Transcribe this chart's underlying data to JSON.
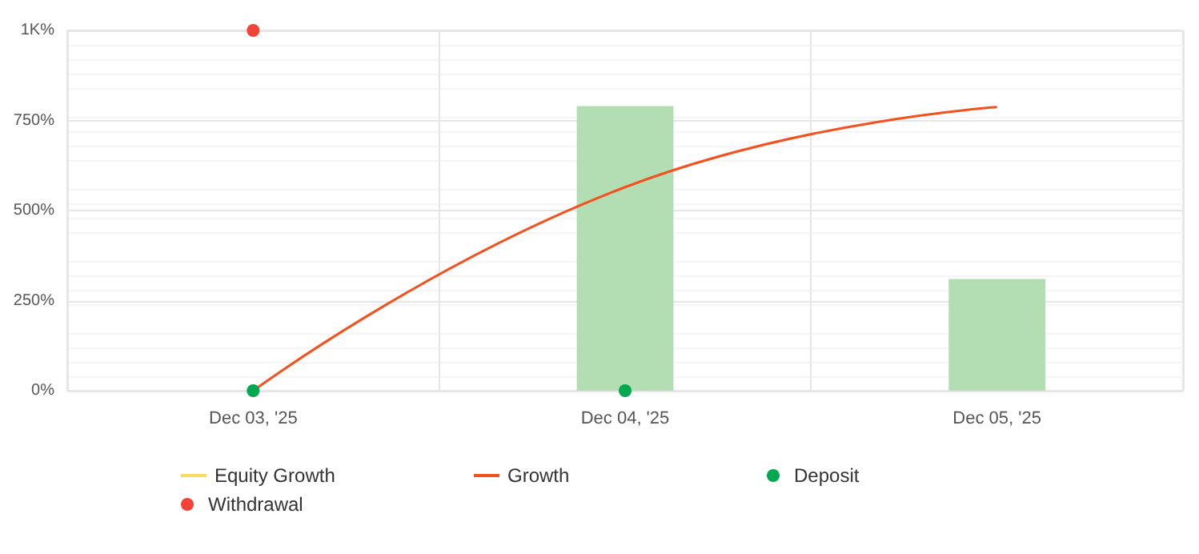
{
  "chart_data": {
    "type": "bar",
    "categories": [
      "Dec 03, '25",
      "Dec 04, '25",
      "Dec 05, '25"
    ],
    "series": [
      {
        "color": "#b3deb3",
        "values": [
          null,
          790,
          310
        ]
      },
      {
        "type": "line",
        "name": "Equity Growth",
        "color": "#ffd966",
        "values": [
          null,
          null,
          null
        ]
      },
      {
        "type": "line",
        "name": "Growth",
        "color": "#f4511e",
        "values": [
          0,
          565,
          787
        ],
        "marker": "none"
      },
      {
        "type": "scatter",
        "name": "Deposit",
        "color": "#00a84f",
        "x": [
          "Dec 03, '25",
          "Dec 04, '25"
        ],
        "values": [
          0,
          0
        ]
      },
      {
        "type": "scatter",
        "name": "Withdrawal",
        "color": "#f44336",
        "x": [
          "Dec 03, '25"
        ],
        "values": [
          1000
        ]
      }
    ],
    "ylim": [
      0,
      1000
    ],
    "yticks": [
      {
        "value": 0,
        "label": "0%"
      },
      {
        "value": 250,
        "label": "250%"
      },
      {
        "value": 500,
        "label": "500%"
      },
      {
        "value": 750,
        "label": "750%"
      },
      {
        "value": 1000,
        "label": "1K%"
      }
    ],
    "grid": true,
    "legend": "bottom"
  }
}
